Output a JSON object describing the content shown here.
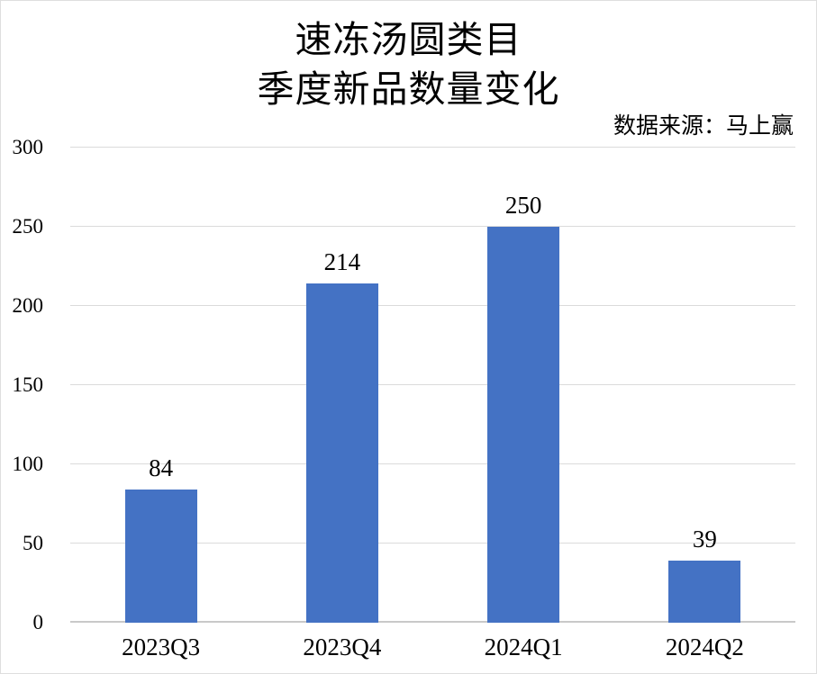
{
  "chart": {
    "title_line1": "速冻汤圆类目",
    "title_line2": "季度新品数量变化",
    "source": "数据来源：马上赢"
  },
  "chart_data": {
    "type": "bar",
    "title": "速冻汤圆类目 季度新品数量变化",
    "subtitle": "数据来源：马上赢",
    "categories": [
      "2023Q3",
      "2023Q4",
      "2024Q1",
      "2024Q2"
    ],
    "values": [
      84,
      214,
      250,
      39
    ],
    "xlabel": "",
    "ylabel": "",
    "ylim": [
      0,
      300
    ],
    "yticks": [
      0,
      50,
      100,
      150,
      200,
      250,
      300
    ],
    "grid": true,
    "legend": false,
    "data_labels": true,
    "bar_color": "#4472C4",
    "gridline_color": "#DBDBDB",
    "axis_line_color": "#C9C9C9",
    "text_color": "#000000"
  }
}
